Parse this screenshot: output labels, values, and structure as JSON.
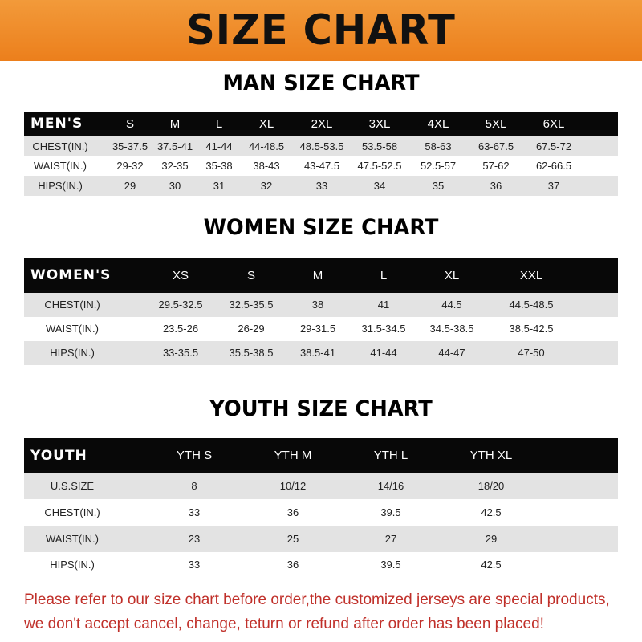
{
  "banner": {
    "title": "SIZE CHART",
    "color": "#ee8a24"
  },
  "men": {
    "title": "MAN SIZE CHART",
    "header": [
      "MEN'S",
      "S",
      "M",
      "L",
      "XL",
      "2XL",
      "3XL",
      "4XL",
      "5XL",
      "6XL"
    ],
    "rows": [
      [
        "CHEST(IN.)",
        "35-37.5",
        "37.5-41",
        "41-44",
        "44-48.5",
        "48.5-53.5",
        "53.5-58",
        "58-63",
        "63-67.5",
        "67.5-72"
      ],
      [
        "WAIST(IN.)",
        "29-32",
        "32-35",
        "35-38",
        "38-43",
        "43-47.5",
        "47.5-52.5",
        "52.5-57",
        "57-62",
        "62-66.5"
      ],
      [
        "HIPS(IN.)",
        "29",
        "30",
        "31",
        "32",
        "33",
        "34",
        "35",
        "36",
        "37"
      ]
    ]
  },
  "women": {
    "title": "WOMEN SIZE CHART",
    "header": [
      "WOMEN'S",
      "XS",
      "S",
      "M",
      "L",
      "XL",
      "XXL"
    ],
    "rows": [
      [
        "CHEST(IN.)",
        "29.5-32.5",
        "32.5-35.5",
        "38",
        "41",
        "44.5",
        "44.5-48.5"
      ],
      [
        "WAIST(IN.)",
        "23.5-26",
        "26-29",
        "29-31.5",
        "31.5-34.5",
        "34.5-38.5",
        "38.5-42.5"
      ],
      [
        "HIPS(IN.)",
        "33-35.5",
        "35.5-38.5",
        "38.5-41",
        "41-44",
        "44-47",
        "47-50"
      ]
    ]
  },
  "youth": {
    "title": "YOUTH SIZE CHART",
    "header": [
      "YOUTH",
      "YTH S",
      "YTH M",
      "YTH L",
      "YTH XL"
    ],
    "rows": [
      [
        "U.S.SIZE",
        "8",
        "10/12",
        "14/16",
        "18/20"
      ],
      [
        "CHEST(IN.)",
        "33",
        "36",
        "39.5",
        "42.5"
      ],
      [
        "WAIST(IN.)",
        "23",
        "25",
        "27",
        "29"
      ],
      [
        "HIPS(IN.)",
        "33",
        "36",
        "39.5",
        "42.5"
      ]
    ]
  },
  "note": {
    "line1": "Please refer to our size chart before order,the customized jerseys are special products,",
    "line2": "we don't accept cancel, change, teturn or refund after order has been placed!",
    "color": "#c0302a"
  }
}
